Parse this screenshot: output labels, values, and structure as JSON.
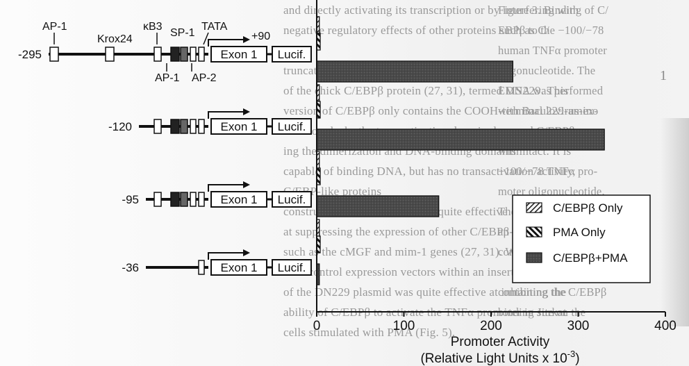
{
  "background_text": {
    "left_lines": [
      "and directly activating its transcription or by interfering with",
      "negative regulatory effects of other proteins such as C/",
      "",
      "truncated, dominant negative (DN) version",
      "of the chick C/EBPβ protein (27, 31), termed DN229. This",
      "version of C/EBPβ only contains the COOH-terminal 229-amino",
      "therefore lacks the transactivation domain, leav-",
      "ing the dimerization and DNA-binding domains intact. It is",
      "capable of binding DNA, but has no transactivation activity,",
      "C/EBP-like proteins",
      "construct has been shown to be quite effective",
      "at suppressing the expression of other C/EBPβ-regulated genes,",
      "such as the cMGF and mim-1 genes (27, 31). When compared",
      "with control expression vectors within an insert cotransfection",
      "of the DN229 plasmid was quite effective at inhibiting the",
      "ability of C/EBPβ to activate the TNFα promoter in Jurkat",
      "cells stimulated with PMA (Fig. 5)."
    ],
    "right_lines": [
      "Figure 3. Binding of C/",
      "EBPβ to the −100/−78",
      "human TNFα promoter",
      "oligonucleotide. The",
      "EMSA was performed",
      "with Baculovirus-ex-",
      "pressed C/EBPβ",
      "with",
      "−100/−78 TNFα pro-",
      "moter oligonucleotide.",
      "The lanes included",
      "an unlabeled, irrelevant",
      "control oligonucleotide",
      "",
      "containing the C/EBPβ",
      "binding site on the",
      ""
    ],
    "edge_fragment": "1"
  },
  "chart_data": {
    "type": "bar",
    "orientation": "horizontal",
    "title": "",
    "xlabel": "Promoter Activity",
    "xlabel_line2": "(Relative Light Units x 10",
    "xlabel_exponent": "-3",
    "ylabel": "",
    "xlim": [
      0,
      400
    ],
    "x_ticks": [
      "0",
      "100",
      "200",
      "300",
      "400"
    ],
    "grid": false,
    "legend_placement": "right",
    "categories": [
      "-295",
      "-120",
      "-95",
      "-36"
    ],
    "series": [
      {
        "name": "C/EBPβ Only",
        "pattern": "dotted-diagonal",
        "values": [
          3,
          3,
          3,
          3
        ]
      },
      {
        "name": "PMA Only",
        "pattern": "hatch-diagonal",
        "values": [
          4,
          4,
          4,
          4
        ]
      },
      {
        "name": "C/EBPβ+PMA",
        "pattern": "dark-stipple",
        "values": [
          225,
          330,
          140,
          3
        ]
      }
    ]
  },
  "constructs": {
    "labels": [
      "AP-1",
      "Krox24",
      "κB3",
      "SP-1",
      "TATA",
      "+90",
      "AP-1",
      "AP-2"
    ],
    "exon_label": "Exon 1",
    "lucif_label": "Lucif."
  },
  "colors": {
    "bar_dark": "#4a4a4a",
    "bar_edge": "#111111",
    "axis": "#111111",
    "text": "#111111"
  }
}
